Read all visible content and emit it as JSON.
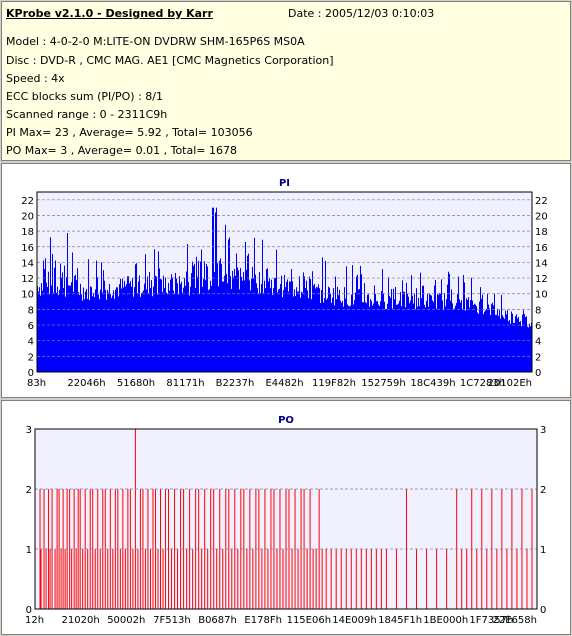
{
  "header": {
    "title": "KProbe v2.1.0 - Designed by Karr",
    "date": "Date : 2005/12/03 0:10:03",
    "lines": [
      "Model : 4-0-2-0 M:LITE-ON DVDRW SHM-165P6S MS0A",
      "Disc : DVD-R , CMC MAG. AE1 [CMC Magnetics Corporation]",
      "Speed : 4x",
      "ECC blocks sum (PI/PO) : 8/1",
      "Scanned range : 0 - 2311C9h",
      "PI Max= 23 , Average= 5.92 , Total= 103056",
      "PO Max= 3 , Average= 0.01 , Total= 1678"
    ]
  },
  "chart_data": [
    {
      "type": "bar",
      "title": "PI",
      "ylim": [
        0,
        23
      ],
      "yticks": [
        0,
        2,
        4,
        6,
        8,
        10,
        12,
        14,
        16,
        18,
        20,
        22
      ],
      "xticks": [
        "83h",
        "22046h",
        "51680h",
        "81171h",
        "B2237h",
        "E4482h",
        "119F82h",
        "152759h",
        "18C439h",
        "1C7283h",
        "20102Eh"
      ],
      "grid": true,
      "color": "#0000ff",
      "envelope": [
        {
          "x": 0.0,
          "base": 9.5,
          "peak": 16
        },
        {
          "x": 0.05,
          "base": 9.5,
          "peak": 19
        },
        {
          "x": 0.1,
          "base": 9,
          "peak": 15
        },
        {
          "x": 0.2,
          "base": 9.5,
          "peak": 16
        },
        {
          "x": 0.3,
          "base": 9.5,
          "peak": 17
        },
        {
          "x": 0.36,
          "base": 10.5,
          "peak": 21
        },
        {
          "x": 0.45,
          "base": 10,
          "peak": 17
        },
        {
          "x": 0.55,
          "base": 9,
          "peak": 15
        },
        {
          "x": 0.65,
          "base": 8,
          "peak": 14
        },
        {
          "x": 0.75,
          "base": 8,
          "peak": 13
        },
        {
          "x": 0.85,
          "base": 8,
          "peak": 13
        },
        {
          "x": 0.92,
          "base": 7,
          "peak": 11
        },
        {
          "x": 1.0,
          "base": 5,
          "peak": 10
        }
      ]
    },
    {
      "type": "bar",
      "title": "PO",
      "ylim": [
        0,
        3
      ],
      "yticks": [
        0,
        1,
        2,
        3
      ],
      "xticks": [
        "12h",
        "21020h",
        "50002h",
        "7F513h",
        "B0687h",
        "E178Fh",
        "115E06h",
        "14E009h",
        "1845F1h",
        "1BE000h",
        "1F7357h",
        "22E658h"
      ],
      "grid": true,
      "color": "#ff0000",
      "spikes": [
        [
          0.01,
          2
        ],
        [
          0.012,
          1
        ],
        [
          0.018,
          2
        ],
        [
          0.022,
          1
        ],
        [
          0.027,
          2
        ],
        [
          0.03,
          1
        ],
        [
          0.034,
          2
        ],
        [
          0.04,
          1
        ],
        [
          0.044,
          2
        ],
        [
          0.048,
          2
        ],
        [
          0.052,
          1
        ],
        [
          0.056,
          2
        ],
        [
          0.06,
          1
        ],
        [
          0.064,
          2
        ],
        [
          0.069,
          2
        ],
        [
          0.073,
          1
        ],
        [
          0.078,
          2
        ],
        [
          0.082,
          1
        ],
        [
          0.086,
          2
        ],
        [
          0.09,
          2
        ],
        [
          0.095,
          1
        ],
        [
          0.1,
          2
        ],
        [
          0.105,
          1
        ],
        [
          0.11,
          2
        ],
        [
          0.115,
          2
        ],
        [
          0.12,
          1
        ],
        [
          0.125,
          2
        ],
        [
          0.13,
          1
        ],
        [
          0.135,
          2
        ],
        [
          0.14,
          2
        ],
        [
          0.145,
          1
        ],
        [
          0.15,
          2
        ],
        [
          0.155,
          1
        ],
        [
          0.16,
          2
        ],
        [
          0.165,
          2
        ],
        [
          0.17,
          1
        ],
        [
          0.175,
          2
        ],
        [
          0.18,
          1
        ],
        [
          0.185,
          2
        ],
        [
          0.19,
          2
        ],
        [
          0.195,
          1
        ],
        [
          0.2,
          3
        ],
        [
          0.205,
          1
        ],
        [
          0.21,
          2
        ],
        [
          0.215,
          2
        ],
        [
          0.22,
          1
        ],
        [
          0.225,
          2
        ],
        [
          0.23,
          1
        ],
        [
          0.235,
          2
        ],
        [
          0.24,
          2
        ],
        [
          0.245,
          1
        ],
        [
          0.25,
          2
        ],
        [
          0.255,
          1
        ],
        [
          0.26,
          2
        ],
        [
          0.266,
          2
        ],
        [
          0.272,
          1
        ],
        [
          0.278,
          2
        ],
        [
          0.284,
          1
        ],
        [
          0.29,
          2
        ],
        [
          0.296,
          2
        ],
        [
          0.302,
          1
        ],
        [
          0.308,
          2
        ],
        [
          0.314,
          1
        ],
        [
          0.32,
          2
        ],
        [
          0.326,
          2
        ],
        [
          0.332,
          1
        ],
        [
          0.338,
          2
        ],
        [
          0.344,
          1
        ],
        [
          0.35,
          2
        ],
        [
          0.356,
          2
        ],
        [
          0.362,
          1
        ],
        [
          0.368,
          2
        ],
        [
          0.374,
          1
        ],
        [
          0.38,
          2
        ],
        [
          0.386,
          2
        ],
        [
          0.392,
          1
        ],
        [
          0.398,
          2
        ],
        [
          0.404,
          1
        ],
        [
          0.41,
          2
        ],
        [
          0.416,
          2
        ],
        [
          0.422,
          1
        ],
        [
          0.428,
          2
        ],
        [
          0.434,
          1
        ],
        [
          0.44,
          2
        ],
        [
          0.446,
          2
        ],
        [
          0.452,
          1
        ],
        [
          0.458,
          2
        ],
        [
          0.464,
          1
        ],
        [
          0.47,
          2
        ],
        [
          0.476,
          2
        ],
        [
          0.482,
          1
        ],
        [
          0.488,
          2
        ],
        [
          0.494,
          1
        ],
        [
          0.5,
          2
        ],
        [
          0.506,
          2
        ],
        [
          0.512,
          1
        ],
        [
          0.518,
          2
        ],
        [
          0.524,
          1
        ],
        [
          0.53,
          2
        ],
        [
          0.536,
          2
        ],
        [
          0.542,
          1
        ],
        [
          0.548,
          2
        ],
        [
          0.554,
          1
        ],
        [
          0.56,
          1
        ],
        [
          0.566,
          2
        ],
        [
          0.572,
          1
        ],
        [
          0.58,
          1
        ],
        [
          0.59,
          1
        ],
        [
          0.6,
          1
        ],
        [
          0.61,
          1
        ],
        [
          0.62,
          1
        ],
        [
          0.63,
          1
        ],
        [
          0.64,
          1
        ],
        [
          0.65,
          1
        ],
        [
          0.66,
          1
        ],
        [
          0.67,
          1
        ],
        [
          0.68,
          1
        ],
        [
          0.69,
          1
        ],
        [
          0.7,
          1
        ],
        [
          0.72,
          1
        ],
        [
          0.74,
          2
        ],
        [
          0.76,
          1
        ],
        [
          0.78,
          1
        ],
        [
          0.8,
          1
        ],
        [
          0.82,
          1
        ],
        [
          0.84,
          2
        ],
        [
          0.85,
          1
        ],
        [
          0.86,
          1
        ],
        [
          0.87,
          2
        ],
        [
          0.88,
          1
        ],
        [
          0.89,
          2
        ],
        [
          0.9,
          1
        ],
        [
          0.91,
          2
        ],
        [
          0.92,
          1
        ],
        [
          0.93,
          2
        ],
        [
          0.94,
          1
        ],
        [
          0.95,
          2
        ],
        [
          0.96,
          1
        ],
        [
          0.97,
          2
        ],
        [
          0.98,
          1
        ],
        [
          0.99,
          2
        ]
      ]
    }
  ]
}
